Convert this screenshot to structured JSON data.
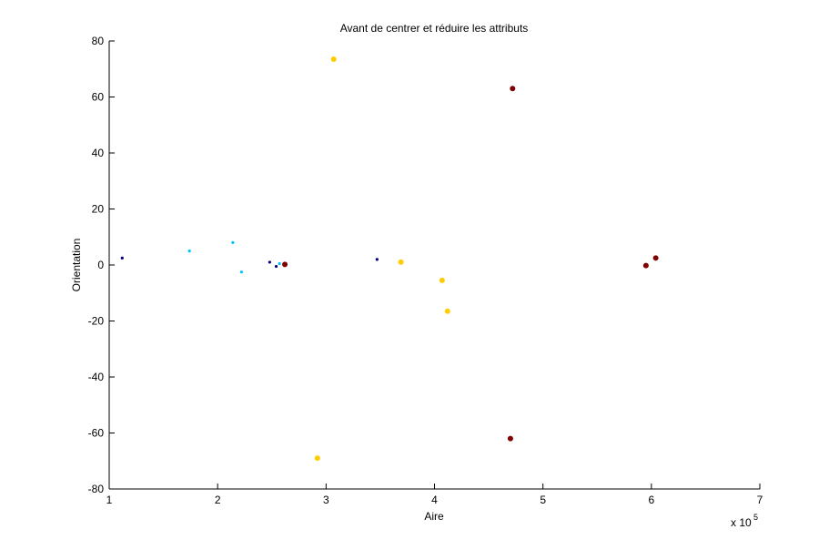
{
  "chart_data": {
    "type": "scatter",
    "title": "Avant de centrer et réduire les attributs",
    "xlabel": "Aire",
    "ylabel": "Orientation",
    "x_multiplier_label": "x 10",
    "x_multiplier_exponent": "5",
    "xlim": [
      1,
      7
    ],
    "ylim": [
      -80,
      80
    ],
    "xticks": [
      1,
      2,
      3,
      4,
      5,
      6,
      7
    ],
    "yticks": [
      80,
      60,
      40,
      20,
      0,
      -20,
      -40,
      -60,
      -80
    ],
    "xtick_labels": [
      "1",
      "2",
      "3",
      "4",
      "5",
      "6",
      "7"
    ],
    "ytick_labels": [
      "80",
      "60",
      "40",
      "20",
      "0",
      "-20",
      "-40",
      "-60",
      "-80"
    ],
    "grid": false,
    "series": [
      {
        "color": "#00007f",
        "marker": "dot",
        "points": [
          [
            1.12,
            2.5
          ],
          [
            2.48,
            1.0
          ],
          [
            2.54,
            -0.5
          ],
          [
            3.47,
            2.0
          ]
        ]
      },
      {
        "color": "#00bfff",
        "marker": "dot",
        "points": [
          [
            1.74,
            5.0
          ],
          [
            2.14,
            8.0
          ],
          [
            2.22,
            -2.5
          ],
          [
            2.57,
            0.5
          ]
        ]
      },
      {
        "color": "#ffcc00",
        "marker": "dot",
        "points": [
          [
            3.07,
            73.5
          ],
          [
            2.92,
            -69.0
          ],
          [
            3.69,
            1.0
          ],
          [
            4.07,
            -5.5
          ],
          [
            4.12,
            -16.5
          ]
        ]
      },
      {
        "color": "#7f0000",
        "marker": "dot",
        "points": [
          [
            2.62,
            0.2
          ],
          [
            4.72,
            63.0
          ],
          [
            4.7,
            -62.0
          ],
          [
            5.95,
            -0.2
          ],
          [
            6.04,
            2.5
          ]
        ]
      }
    ]
  }
}
